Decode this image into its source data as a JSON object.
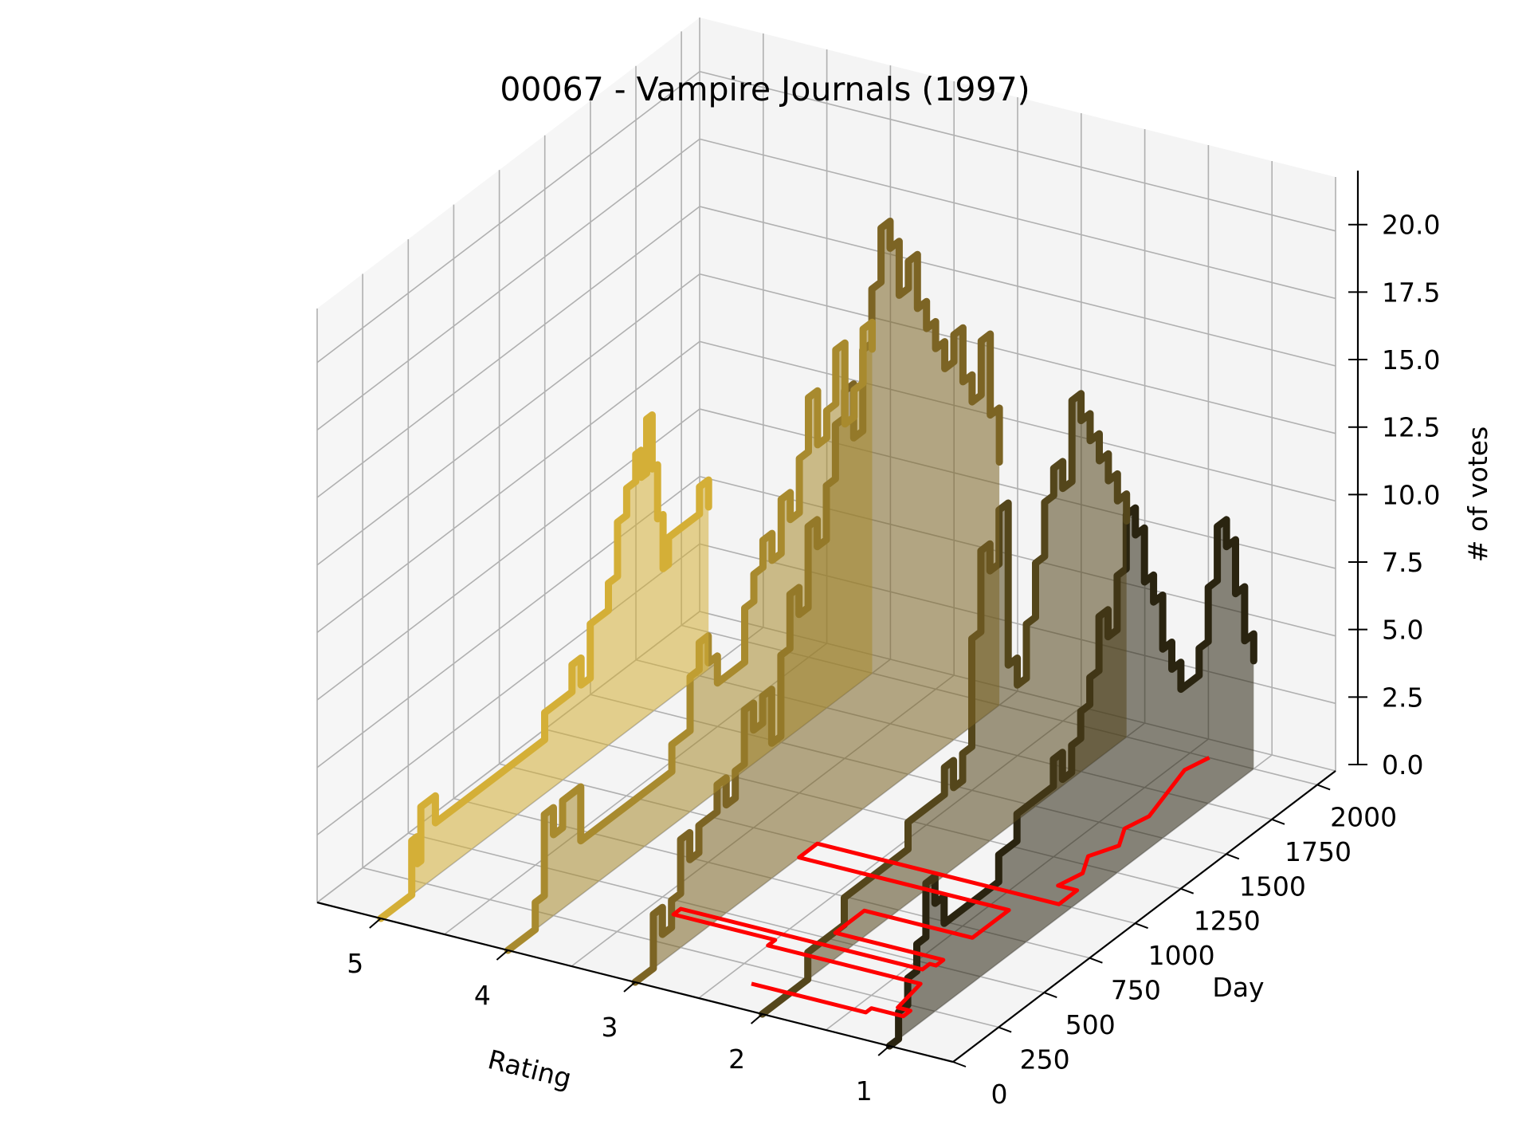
{
  "chart_data": {
    "type": "3d-area-line",
    "title": "00067 - Vampire Journals (1997)",
    "xlabel": "Rating",
    "ylabel": "Day",
    "zlabel": "# of votes",
    "x_ticks": [
      "5",
      "4",
      "3",
      "2",
      "1"
    ],
    "y_ticks": [
      "0",
      "250",
      "500",
      "750",
      "1000",
      "1250",
      "1500",
      "1750",
      "2000"
    ],
    "z_ticks": [
      "0.0",
      "2.5",
      "5.0",
      "7.5",
      "10.0",
      "12.5",
      "15.0",
      "17.5",
      "20.0"
    ],
    "xlim": [
      0.5,
      5.5
    ],
    "ylim": [
      0,
      2100
    ],
    "zlim": [
      0,
      22
    ],
    "grid": true,
    "series": [
      {
        "rating": 5,
        "color": "#D4AF37",
        "points": [
          [
            0,
            0
          ],
          [
            100,
            0
          ],
          [
            170,
            2
          ],
          [
            200,
            1
          ],
          [
            220,
            3
          ],
          [
            300,
            2
          ],
          [
            800,
            2
          ],
          [
            900,
            3
          ],
          [
            1050,
            4
          ],
          [
            1100,
            3
          ],
          [
            1150,
            5
          ],
          [
            1200,
            5
          ],
          [
            1250,
            6
          ],
          [
            1300,
            8
          ],
          [
            1350,
            9
          ],
          [
            1400,
            10
          ],
          [
            1430,
            9
          ],
          [
            1460,
            11
          ],
          [
            1490,
            9
          ],
          [
            1520,
            7
          ],
          [
            1550,
            5
          ],
          [
            1580,
            6
          ],
          [
            1650,
            6
          ],
          [
            1750,
            7
          ],
          [
            1800,
            6
          ]
        ]
      },
      {
        "rating": 4,
        "color": "#A88A2E",
        "points": [
          [
            0,
            0
          ],
          [
            150,
            1
          ],
          [
            200,
            4
          ],
          [
            250,
            3
          ],
          [
            300,
            4
          ],
          [
            400,
            2
          ],
          [
            800,
            2
          ],
          [
            900,
            3
          ],
          [
            1000,
            5
          ],
          [
            1050,
            6
          ],
          [
            1100,
            5
          ],
          [
            1150,
            4
          ],
          [
            1250,
            4
          ],
          [
            1300,
            6
          ],
          [
            1350,
            7
          ],
          [
            1400,
            8
          ],
          [
            1450,
            7
          ],
          [
            1500,
            9
          ],
          [
            1550,
            8
          ],
          [
            1600,
            10
          ],
          [
            1650,
            12
          ],
          [
            1700,
            10
          ],
          [
            1750,
            11
          ],
          [
            1800,
            13
          ],
          [
            1850,
            10
          ],
          [
            1900,
            11
          ],
          [
            1950,
            13
          ],
          [
            2000,
            12
          ]
        ]
      },
      {
        "rating": 3,
        "color": "#7C6424",
        "points": [
          [
            0,
            0
          ],
          [
            50,
            0
          ],
          [
            100,
            2
          ],
          [
            150,
            1
          ],
          [
            200,
            2
          ],
          [
            250,
            4
          ],
          [
            300,
            3
          ],
          [
            350,
            4
          ],
          [
            400,
            4
          ],
          [
            450,
            5
          ],
          [
            500,
            4
          ],
          [
            550,
            5
          ],
          [
            600,
            7
          ],
          [
            650,
            6
          ],
          [
            700,
            7
          ],
          [
            750,
            5
          ],
          [
            800,
            8
          ],
          [
            850,
            10
          ],
          [
            900,
            9
          ],
          [
            950,
            12
          ],
          [
            1000,
            11
          ],
          [
            1050,
            13
          ],
          [
            1100,
            15
          ],
          [
            1150,
            16
          ],
          [
            1200,
            14
          ],
          [
            1250,
            17
          ],
          [
            1300,
            19
          ],
          [
            1350,
            21
          ],
          [
            1400,
            20
          ],
          [
            1450,
            18
          ],
          [
            1500,
            19
          ],
          [
            1550,
            17
          ],
          [
            1600,
            16
          ],
          [
            1650,
            15
          ],
          [
            1700,
            14
          ],
          [
            1750,
            15
          ],
          [
            1800,
            13
          ],
          [
            1850,
            12
          ],
          [
            1900,
            14
          ],
          [
            1950,
            11
          ],
          [
            2000,
            9
          ]
        ]
      },
      {
        "rating": 2,
        "color": "#54461B",
        "points": [
          [
            0,
            0
          ],
          [
            200,
            0
          ],
          [
            250,
            1
          ],
          [
            350,
            1
          ],
          [
            450,
            2
          ],
          [
            700,
            2
          ],
          [
            800,
            3
          ],
          [
            900,
            3
          ],
          [
            1000,
            4
          ],
          [
            1050,
            3
          ],
          [
            1100,
            4
          ],
          [
            1150,
            8
          ],
          [
            1200,
            11
          ],
          [
            1250,
            10
          ],
          [
            1300,
            12
          ],
          [
            1350,
            6
          ],
          [
            1400,
            5
          ],
          [
            1450,
            7
          ],
          [
            1500,
            9
          ],
          [
            1550,
            11
          ],
          [
            1600,
            12
          ],
          [
            1650,
            11
          ],
          [
            1700,
            14
          ],
          [
            1750,
            13
          ],
          [
            1800,
            12
          ],
          [
            1850,
            11
          ],
          [
            1900,
            10
          ],
          [
            1950,
            9
          ],
          [
            2000,
            8
          ]
        ]
      },
      {
        "rating": 1,
        "color": "#2A2410",
        "points": [
          [
            0,
            0
          ],
          [
            50,
            1
          ],
          [
            100,
            2
          ],
          [
            150,
            3
          ],
          [
            200,
            5
          ],
          [
            250,
            4
          ],
          [
            300,
            3
          ],
          [
            400,
            3
          ],
          [
            500,
            3
          ],
          [
            600,
            4
          ],
          [
            700,
            5
          ],
          [
            800,
            5
          ],
          [
            900,
            6
          ],
          [
            950,
            5
          ],
          [
            1000,
            6
          ],
          [
            1050,
            7
          ],
          [
            1100,
            8
          ],
          [
            1150,
            10
          ],
          [
            1200,
            9
          ],
          [
            1250,
            11
          ],
          [
            1300,
            13
          ],
          [
            1350,
            12
          ],
          [
            1400,
            10
          ],
          [
            1450,
            9
          ],
          [
            1500,
            7
          ],
          [
            1550,
            6
          ],
          [
            1600,
            5
          ],
          [
            1650,
            5
          ],
          [
            1700,
            6
          ],
          [
            1750,
            8
          ],
          [
            1800,
            10
          ],
          [
            1850,
            9
          ],
          [
            1900,
            7
          ],
          [
            1950,
            5
          ],
          [
            2000,
            4
          ]
        ]
      }
    ],
    "overlay": {
      "color": "#FF0000",
      "points": [
        [
          2.3,
          150
        ],
        [
          1.4,
          150
        ],
        [
          1.4,
          180
        ],
        [
          1.15,
          180
        ],
        [
          1.15,
          220
        ],
        [
          1.25,
          220
        ],
        [
          1.3,
          380
        ],
        [
          2.5,
          380
        ],
        [
          2.5,
          420
        ],
        [
          3.3,
          420
        ],
        [
          3.3,
          460
        ],
        [
          1.4,
          460
        ],
        [
          1.4,
          500
        ],
        [
          1.35,
          500
        ],
        [
          1.35,
          540
        ],
        [
          2.2,
          540
        ],
        [
          2.2,
          700
        ],
        [
          1.35,
          700
        ],
        [
          1.35,
          900
        ],
        [
          3.0,
          900
        ],
        [
          3.0,
          1000
        ],
        [
          1.1,
          1000
        ],
        [
          1.1,
          1100
        ],
        [
          1.25,
          1100
        ],
        [
          1.2,
          1200
        ],
        [
          1.3,
          1300
        ],
        [
          1.2,
          1400
        ],
        [
          1.3,
          1500
        ],
        [
          1.25,
          1600
        ],
        [
          1.3,
          1700
        ],
        [
          1.35,
          1800
        ],
        [
          1.4,
          1900
        ],
        [
          1.35,
          2000
        ]
      ]
    }
  }
}
